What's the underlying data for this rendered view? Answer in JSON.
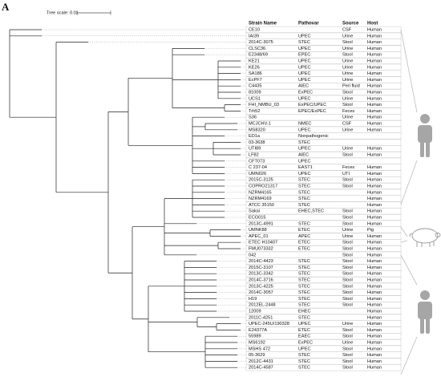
{
  "panel_label": "A",
  "scale_label": "Tree scale: 0.01",
  "table": {
    "header": [
      "Strain Name",
      "Pathovar",
      "Source",
      "Host"
    ],
    "rows": [
      {
        "strain": "CE10",
        "source": "CSF",
        "host": "Human"
      },
      {
        "strain": "IAI39",
        "pathovar": "UPEC",
        "source": "Urine",
        "host": "Human"
      },
      {
        "strain": "2014C-3075",
        "pathovar": "STEC",
        "source": "Stool",
        "host": "Human"
      },
      {
        "strain": "CLSC36",
        "pathovar": "UPEC",
        "source": "Urine",
        "host": "Human"
      },
      {
        "strain": "E2348/69",
        "pathovar": "EPEC",
        "source": "Stool",
        "host": "Human"
      },
      {
        "strain": "KE21",
        "pathovar": "UPEC",
        "source": "Urine",
        "host": "Human"
      },
      {
        "strain": "KE26",
        "pathovar": "UPEC",
        "source": "Urine",
        "host": "Human"
      },
      {
        "strain": "SA186",
        "pathovar": "UPEC",
        "source": "Urine",
        "host": "Human"
      },
      {
        "strain": "EcPF7",
        "pathovar": "UPEC",
        "source": "Urine",
        "host": "Human"
      },
      {
        "strain": "C4435",
        "pathovar": "AIEC",
        "source": "Peri fluid",
        "host": "Human"
      },
      {
        "strain": "81009",
        "pathovar": "ExPEC",
        "source": "Stool",
        "host": "Human"
      },
      {
        "strain": "UCS1",
        "pathovar": "UPEC",
        "source": "Urine",
        "host": "Human"
      },
      {
        "strain": "FHI_NMBU_03",
        "pathovar": "ExPEC/UPEC",
        "source": "Stool",
        "host": "Human"
      },
      {
        "strain": "Trh52",
        "pathovar": "EPEC/ExPEC",
        "source": "Feces",
        "host": "Human"
      },
      {
        "strain": "S36",
        "source": "Urine",
        "host": "Human"
      },
      {
        "strain": "MCJCHV-1",
        "pathovar": "NMEC",
        "source": "CSF",
        "host": "Human"
      },
      {
        "strain": "MS8320",
        "pathovar": "UPEC",
        "source": "Urine",
        "host": "Human"
      },
      {
        "strain": "ED1a",
        "pathovar": "Nonpathogenic"
      },
      {
        "strain": "03-3638",
        "pathovar": "STEC"
      },
      {
        "strain": "UTI89",
        "pathovar": "UPEC",
        "source": "Urine",
        "host": "Human"
      },
      {
        "strain": "LF82",
        "pathovar": "AIEC",
        "source": "Stool",
        "host": "Human"
      },
      {
        "strain": "CFT073",
        "pathovar": "UPEC"
      },
      {
        "strain": "C 237-04",
        "pathovar": "EAST1",
        "source": "Feces",
        "host": "Human"
      },
      {
        "strain": "UMN026",
        "pathovar": "UPEC",
        "source": "UTI",
        "host": "Human"
      },
      {
        "strain": "2015C-3125",
        "pathovar": "STEC",
        "source": "Stool",
        "host": "Human"
      },
      {
        "strain": "COPRO21317",
        "pathovar": "STEC",
        "source": "Stool",
        "host": "Human"
      },
      {
        "strain": "NZRM4165",
        "pathovar": "STEC",
        "host": "Human"
      },
      {
        "strain": "NZRM4169",
        "pathovar": "STEC",
        "host": "Human"
      },
      {
        "strain": "ATCC 35150",
        "pathovar": "STEC",
        "host": "Human"
      },
      {
        "strain": "Sakai",
        "pathovar": "EHEC,STEC",
        "source": "Stool",
        "host": "Human"
      },
      {
        "strain": "ECG015",
        "source": "Stool",
        "host": "Human"
      },
      {
        "strain": "2013C-4991",
        "pathovar": "STEC",
        "source": "Stool",
        "host": "Human"
      },
      {
        "strain": "UMNK88",
        "pathovar": "ETEC",
        "source": "Urine",
        "host": "Pig"
      },
      {
        "strain": "APEC_01",
        "pathovar": "APEC",
        "source": "Urine",
        "host": "Human"
      },
      {
        "strain": "ETEC H10407",
        "pathovar": "ETEC",
        "source": "Stool",
        "host": "Human"
      },
      {
        "strain": "FMU073332",
        "pathovar": "ETEC",
        "source": "Stool",
        "host": "Human"
      },
      {
        "strain": "042",
        "source": "Stool",
        "host": "Human"
      },
      {
        "strain": "2014C-4423",
        "pathovar": "STEC",
        "source": "Stool",
        "host": "Human"
      },
      {
        "strain": "2015C-3107",
        "pathovar": "STEC",
        "source": "Stool",
        "host": "Human"
      },
      {
        "strain": "2013C-3342",
        "pathovar": "STEC",
        "source": "Stool",
        "host": "Human"
      },
      {
        "strain": "2014C-3716",
        "pathovar": "STEC",
        "source": "Stool",
        "host": "Human"
      },
      {
        "strain": "2013C-4225",
        "pathovar": "STEC",
        "source": "Stool",
        "host": "Human"
      },
      {
        "strain": "2014C-3057",
        "pathovar": "STEC",
        "source": "Stool",
        "host": "Human"
      },
      {
        "strain": "H19",
        "pathovar": "STEC",
        "source": "Stool",
        "host": "Human"
      },
      {
        "strain": "2012EL-2448",
        "pathovar": "STEC",
        "source": "Stool",
        "host": "Human"
      },
      {
        "strain": "12009",
        "pathovar": "EHEC",
        "host": "Human"
      },
      {
        "strain": "2011C-4251",
        "pathovar": "STEC",
        "host": "Human"
      },
      {
        "strain": "UPEC-245U/190328",
        "pathovar": "UPEC",
        "source": "Urine",
        "host": "Human"
      },
      {
        "strain": "E24377A",
        "pathovar": "ETEC",
        "source": "Stool",
        "host": "Human"
      },
      {
        "strain": "55989",
        "pathovar": "EAEC",
        "source": "Stool",
        "host": "Human"
      },
      {
        "strain": "MS6192",
        "pathovar": "ExPEC",
        "source": "Urine",
        "host": "Human"
      },
      {
        "strain": "MSHS 472",
        "pathovar": "UPEC",
        "source": "Stool",
        "host": "Human"
      },
      {
        "strain": "05-3629",
        "pathovar": "STEC",
        "source": "Stool",
        "host": "Human"
      },
      {
        "strain": "2012C-4431",
        "pathovar": "STEC",
        "source": "Stool",
        "host": "Human"
      },
      {
        "strain": "2014C-4587",
        "pathovar": "STEC",
        "source": "Stool",
        "host": "Human"
      }
    ]
  }
}
